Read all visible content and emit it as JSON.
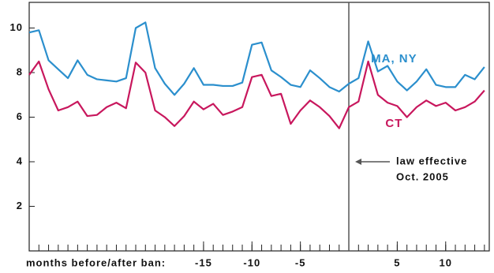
{
  "chart_data": {
    "type": "line",
    "x_label": "months before/after ban:",
    "x": [
      -33,
      -32,
      -31,
      -30,
      -29,
      -28,
      -27,
      -26,
      -25,
      -24,
      -23,
      -22,
      -21,
      -20,
      -19,
      -18,
      -17,
      -16,
      -15,
      -14,
      -13,
      -12,
      -11,
      -10,
      -9,
      -8,
      -7,
      -6,
      -5,
      -4,
      -3,
      -2,
      -1,
      0,
      1,
      2,
      3,
      4,
      5,
      6,
      7,
      8,
      9,
      10,
      11,
      12,
      13,
      14
    ],
    "series": [
      {
        "name": "MA, NY",
        "color": "#2b8fcd",
        "values": [
          9.8,
          9.9,
          8.55,
          8.15,
          7.75,
          8.55,
          7.9,
          7.7,
          7.65,
          7.6,
          7.75,
          10.0,
          10.25,
          8.2,
          7.5,
          7.0,
          7.5,
          8.2,
          7.45,
          7.45,
          7.4,
          7.4,
          7.55,
          9.25,
          9.35,
          8.1,
          7.8,
          7.45,
          7.35,
          8.1,
          7.75,
          7.35,
          7.15,
          7.5,
          7.75,
          9.4,
          8.05,
          8.3,
          7.6,
          7.2,
          7.6,
          8.15,
          7.45,
          7.35,
          7.35,
          7.9,
          7.7,
          8.25
        ]
      },
      {
        "name": "CT",
        "color": "#c8175d",
        "values": [
          7.9,
          8.5,
          7.25,
          6.3,
          6.45,
          6.7,
          6.05,
          6.1,
          6.45,
          6.65,
          6.4,
          8.45,
          8.0,
          6.3,
          6.0,
          5.6,
          6.05,
          6.7,
          6.35,
          6.6,
          6.1,
          6.25,
          6.45,
          7.8,
          7.9,
          6.95,
          7.05,
          5.7,
          6.3,
          6.75,
          6.45,
          6.05,
          5.5,
          6.45,
          6.7,
          8.5,
          7.0,
          6.65,
          6.5,
          6.0,
          6.45,
          6.75,
          6.5,
          6.65,
          6.3,
          6.45,
          6.7,
          7.2
        ]
      }
    ],
    "xlim": [
      -33,
      14.5
    ],
    "xticks": [
      -15,
      -10,
      -5,
      5,
      10
    ],
    "ylim": [
      0,
      11.15
    ],
    "yticks": [
      2,
      4,
      6,
      8,
      10
    ],
    "vline": 0,
    "annotation": [
      "law effective",
      "Oct. 2005"
    ]
  }
}
